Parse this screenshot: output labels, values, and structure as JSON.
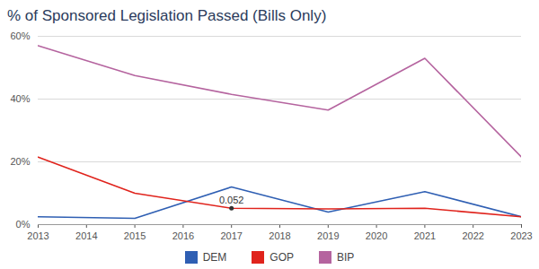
{
  "chart_data": {
    "type": "line",
    "title": "% of Sponsored Legislation Passed (Bills Only)",
    "x": [
      2013,
      2015,
      2017,
      2019,
      2021,
      2023
    ],
    "series": [
      {
        "name": "DEM",
        "color": "#2f5fb3",
        "values": [
          2.5,
          2,
          12,
          4,
          10.5,
          2.5
        ]
      },
      {
        "name": "GOP",
        "color": "#e0231c",
        "values": [
          21.5,
          10,
          5.2,
          5,
          5.2,
          2.5
        ]
      },
      {
        "name": "BIP",
        "color": "#b5649f",
        "values": [
          57,
          47.5,
          41.5,
          36.5,
          53,
          21.5
        ]
      }
    ],
    "xlim": [
      2013,
      2023
    ],
    "xticks": [
      2013,
      2014,
      2015,
      2016,
      2017,
      2018,
      2019,
      2020,
      2021,
      2022,
      2023
    ],
    "ylim": [
      0,
      60
    ],
    "yticks": [
      {
        "value": 0,
        "label": "0%"
      },
      {
        "value": 20,
        "label": "20%"
      },
      {
        "value": 40,
        "label": "40%"
      },
      {
        "value": 60,
        "label": "60%"
      }
    ],
    "grid": true,
    "legend": "bottom",
    "annotations": [
      {
        "x": 2017,
        "y": 5.2,
        "text": "0.052"
      }
    ]
  }
}
